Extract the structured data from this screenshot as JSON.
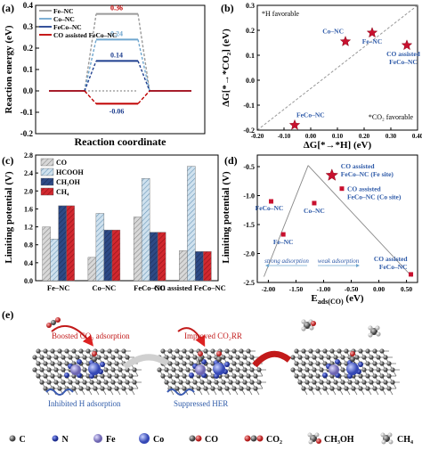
{
  "colors": {
    "red": "#c8102e",
    "darkred": "#c00000",
    "blue": "#2e5aa8",
    "navy": "#1f3f8f",
    "gray": "#9a9a9a",
    "lightblue": "#6fa6cf",
    "grid": "#aaaaaa"
  },
  "panels": {
    "a": "(a)",
    "b": "(b)",
    "c": "(c)",
    "d": "(d)",
    "e": "(e)"
  },
  "chart_data": [
    {
      "panel": "a",
      "type": "line",
      "xlabel": "Reaction coordinate",
      "ylabel": "Reaction energy (eV)",
      "ylim": [
        -0.2,
        0.4
      ],
      "yticks": [
        "-0.2",
        "-0.1",
        "0.0",
        "0.1",
        "0.2",
        "0.3",
        "0.4"
      ],
      "series": [
        {
          "name": "Fe–NC",
          "value": 0.36,
          "label": "0.36",
          "color": "#9a9a9a"
        },
        {
          "name": "Co–NC",
          "value": 0.24,
          "label": "0.24",
          "color": "#6fa6cf"
        },
        {
          "name": "FeCo–NC",
          "value": 0.14,
          "label": "0.14",
          "color": "#1f3f8f"
        },
        {
          "name": "CO assisted FeCo–NC",
          "value": -0.06,
          "label": "-0.06",
          "color": "#c00000"
        }
      ]
    },
    {
      "panel": "b",
      "type": "scatter",
      "xlabel": "ΔG[*→*H] (eV)",
      "ylabel": "ΔG[*→*CO₂] (eV)",
      "xlim": [
        -0.2,
        0.4
      ],
      "ylim": [
        -0.2,
        0.3
      ],
      "xticks": [
        "-0.20",
        "-0.10",
        "0.00",
        "0.10",
        "0.20",
        "0.30",
        "0.40"
      ],
      "yticks": [
        "-0.2",
        "-0.1",
        "0.0",
        "0.1",
        "0.2",
        "0.3"
      ],
      "annotations": {
        "top_left": "*H favorable",
        "bottom_right": "*CO₂ favorable"
      },
      "points": [
        {
          "label": "Co–NC",
          "x": 0.13,
          "y": 0.155
        },
        {
          "label": "Fe–NC",
          "x": 0.23,
          "y": 0.19
        },
        {
          "label": "CO assisted FeCo–NC",
          "x": 0.36,
          "y": 0.14
        },
        {
          "label": "FeCo–NC",
          "x": -0.06,
          "y": -0.18
        }
      ]
    },
    {
      "panel": "c",
      "type": "bar",
      "ylabel": "Limiting potential (V)",
      "ylim": [
        0,
        2.8
      ],
      "yticks": [
        "0.0",
        "0.4",
        "0.8",
        "1.2",
        "1.6",
        "2.0",
        "2.4",
        "2.8"
      ],
      "categories": [
        "Fe–NC",
        "Co–NC",
        "FeCo–NC",
        "CO assisted FeCo–NC"
      ],
      "series": [
        {
          "name": "CO",
          "values": [
            1.2,
            0.52,
            1.42,
            0.67
          ]
        },
        {
          "name": "HCOOH",
          "values": [
            0.93,
            1.5,
            2.28,
            2.55
          ]
        },
        {
          "name": "CH₃OH",
          "values": [
            1.67,
            1.13,
            1.08,
            0.65
          ]
        },
        {
          "name": "CH₄",
          "values": [
            1.67,
            1.13,
            1.08,
            0.65
          ]
        }
      ]
    },
    {
      "panel": "d",
      "type": "scatter",
      "xlabel": "Eads(CO) (eV)",
      "ylabel": "Limiting potential (V)",
      "xlim": [
        -2.2,
        0.7
      ],
      "ylim": [
        -2.5,
        -0.3
      ],
      "xticks": [
        "-2.00",
        "-1.50",
        "-1.00",
        "-0.50",
        "0.00",
        "0.50"
      ],
      "yticks": [
        "-2.5",
        "-2.0",
        "-1.5",
        "-1.0",
        "-0.5"
      ],
      "annotations": {
        "left": "strong adsorption",
        "right": "weak adsorption"
      },
      "points": [
        {
          "label": "FeCo–NC",
          "x": -1.95,
          "y": -1.1
        },
        {
          "label": "Fe–NC",
          "x": -1.73,
          "y": -1.67
        },
        {
          "label": "Co–NC",
          "x": -1.17,
          "y": -1.13
        },
        {
          "label": "CO assisted\nFeCo–NC (Fe site)",
          "x": -0.85,
          "y": -0.65,
          "star": true
        },
        {
          "label": "CO assisted\nFeCo–NC (Co site)",
          "x": -0.67,
          "y": -0.88
        },
        {
          "label": "CO assisted\nFeCo–NC",
          "x": 0.58,
          "y": -2.36
        }
      ]
    }
  ],
  "panel_e": {
    "labels": {
      "boost": "Boosted CO₂ adsorption",
      "inhibit": "Inhibited H adsorption",
      "improve": "Improved CO₂RR",
      "suppress": "Suppressed HER"
    },
    "legend": [
      {
        "symbol": "C",
        "label": "C",
        "color": "#555555"
      },
      {
        "symbol": "N",
        "label": "N",
        "color": "#2a3fb0"
      },
      {
        "symbol": "Fe",
        "label": "Fe",
        "color": "#8d87c9"
      },
      {
        "symbol": "Co",
        "label": "Co",
        "color": "#5b6fd0"
      },
      {
        "symbol": "CO",
        "label": "CO",
        "color": "#d63a3a"
      },
      {
        "symbol": "CO2",
        "label": "CO₂",
        "color": "#d63a3a"
      },
      {
        "symbol": "CH3OH",
        "label": "CH₃OH",
        "color": "#888888"
      },
      {
        "symbol": "CH4",
        "label": "CH₄",
        "color": "#888888"
      }
    ]
  }
}
